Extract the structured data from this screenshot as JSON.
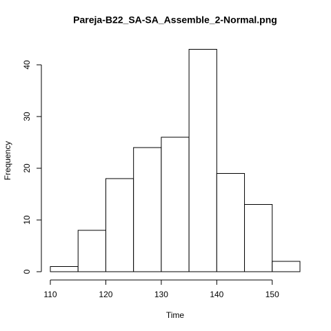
{
  "chart_data": {
    "type": "histogram",
    "title": "Pareja-B22_SA-SA_Assemble_2-Normal.png",
    "xlabel": "Time",
    "ylabel": "Frequency",
    "bins": [
      110,
      115,
      120,
      125,
      130,
      135,
      140,
      145,
      150,
      155
    ],
    "values": [
      1,
      8,
      18,
      24,
      26,
      43,
      19,
      13,
      2
    ],
    "color": "#ffffff",
    "edgecolor": "#000000",
    "xlim": [
      110,
      155
    ],
    "ylim": [
      0,
      43
    ],
    "xticks": [
      110,
      120,
      130,
      140,
      150
    ],
    "yticks": [
      0,
      10,
      20,
      30,
      40
    ],
    "grid": false
  }
}
